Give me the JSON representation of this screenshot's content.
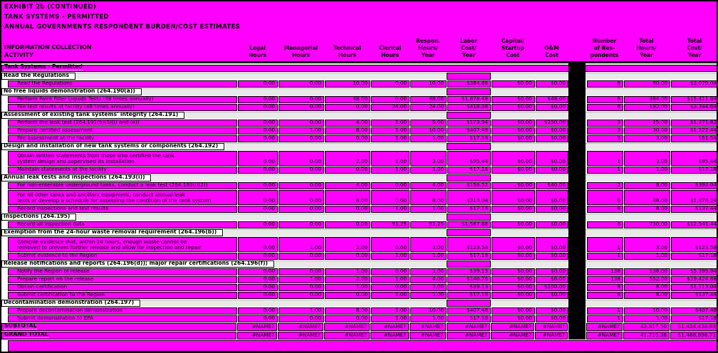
{
  "report": {
    "title_line1": "EXHIBIT 2b (CONTINUED)",
    "title_line2": "TANK SYSTEMS - PERMITTED",
    "title_line3": "ANNUAL GOVERNMENTS RESPONDENT BURDEN/COST ESTIMATES",
    "left_header": "INFORMATION COLLECTION\nACTIVITY"
  },
  "colors": {
    "highlight": "#ff00ff",
    "section_bg": "#e9e9e9",
    "redaction_bar": "#000000"
  },
  "columns": [
    {
      "id": "legal_hours",
      "label": "Legal\nHours"
    },
    {
      "id": "managerial_hours",
      "label": "Managerial\nHours"
    },
    {
      "id": "technical_hours",
      "label": "Technical\nHours"
    },
    {
      "id": "clerical_hours",
      "label": "Clerical\nHours"
    },
    {
      "id": "respondent_hours",
      "label": "Respon.\nHours/\nYear"
    },
    {
      "id": "labor_cost",
      "label": "Labor\nCost/\nYear"
    },
    {
      "id": "capital_cost",
      "label": "Capital/\nStartup\nCost"
    },
    {
      "id": "om_cost",
      "label": "O&M\nCost"
    },
    {
      "id": "respondents",
      "label": "Number\nof Res-\npondents"
    },
    {
      "id": "total_hours",
      "label": "Total\nHours/\nYear"
    },
    {
      "id": "total_cost",
      "label": "Total\nCost/\nYear"
    }
  ],
  "rows": [
    {
      "type": "band",
      "label": "Tank Systems - Permitted"
    },
    {
      "type": "section",
      "label": "Read the Regulations"
    },
    {
      "type": "data",
      "label": "Read the Regulations",
      "values": [
        "0.00",
        "0.00",
        "10.00",
        "0.00",
        "10.00",
        "$384.88",
        "$0.00",
        "$0.00",
        "8",
        "80.00",
        "$3,079.04"
      ]
    },
    {
      "type": "section",
      "label": "No free liquids demonstration (264.190(a))"
    },
    {
      "type": "data",
      "label": "Perform Paint Filter Liquids Tests (48 times annually)",
      "values": [
        "0.00",
        "0.00",
        "48.00",
        "0.00",
        "48.00",
        "$1,878.48",
        "$0.00",
        "$48.00",
        "8",
        "384.00",
        "$15,411.84"
      ]
    },
    {
      "type": "data",
      "label": "File test results at facility  (48 times annually)",
      "values": [
        "0.00",
        "0.00",
        "0.00",
        "24.00",
        "24.00",
        "$418.08",
        "$0.00",
        "$0.00",
        "8",
        "192.00",
        "$3,344.64"
      ]
    },
    {
      "type": "section",
      "label": "Assessment of existing tank systems' integrity (264.191)"
    },
    {
      "type": "data",
      "label": "Perform the leak test (264.191(b)(5)(i) and (ii))",
      "values": [
        "0.00",
        "0.00",
        "4.00",
        "1.00",
        "5.00",
        "$173.94",
        "$0.00",
        "$250.00",
        "3",
        "15.00",
        "$1,271.82"
      ]
    },
    {
      "type": "data",
      "label": "Prepare certified assessment",
      "values": [
        "0.00",
        "1.00",
        "8.00",
        "1.00",
        "10.00",
        "$407.48",
        "$0.00",
        "$0.00",
        "3",
        "30.00",
        "$1,222.44"
      ]
    },
    {
      "type": "data",
      "label": "File assessment at the facility",
      "values": [
        "0.00",
        "0.00",
        "0.00",
        "1.00",
        "1.00",
        "$17.18",
        "$0.00",
        "$0.00",
        "3",
        "3.00",
        "$51.54"
      ]
    },
    {
      "type": "section",
      "label": "Design and installation of new tank systems or components (264.192)"
    },
    {
      "type": "data2",
      "label": "Obtain written statements from those who certified the tank",
      "label2": "system design and supervised its installation",
      "values": [
        "0.00",
        "0.00",
        "2.00",
        "1.00",
        "3.00",
        "$95.44",
        "$0.00",
        "$0.00",
        "1",
        "3.00",
        "$95.44"
      ]
    },
    {
      "type": "data",
      "label": "Maintain statements at the facility",
      "values": [
        "0.00",
        "0.00",
        "0.00",
        "1.00",
        "1.00",
        "$17.18",
        "$0.00",
        "$0.00",
        "1",
        "1.00",
        "$17.18"
      ]
    },
    {
      "type": "section",
      "label": "Annual leak tests and inspections (264.193(i))"
    },
    {
      "type": "data",
      "label": "For non-enterable underground tanks, conduct a leak test (264.193(i)(2))",
      "values": [
        "0.00",
        "0.00",
        "4.00",
        "0.00",
        "4.00",
        "$156.52",
        "$0.00",
        "$40.00",
        "2",
        "8.00",
        "$393.04"
      ]
    },
    {
      "type": "data2",
      "label": "For all other tanks and ancillary equipment, conduct annual leak",
      "label2": "tests or develop a schedule for assessing the condition of the tank system",
      "values": [
        "0.00",
        "0.00",
        "8.00",
        "0.00",
        "8.00",
        "$313.04",
        "$0.00",
        "$0.00",
        "6",
        "48.00",
        "$1,878.24"
      ]
    },
    {
      "type": "data",
      "label": "Record inspections and test results",
      "values": [
        "0.00",
        "0.00",
        "0.00",
        "1.00",
        "1.00",
        "$17.18",
        "$0.00",
        "$0.00",
        "8",
        "8.00",
        "$137.44"
      ]
    },
    {
      "type": "section",
      "label": "Inspections (264.195)"
    },
    {
      "type": "data",
      "label": "Record all inspection data",
      "values": [
        "0.00",
        "0.00",
        "0.00",
        "91.25",
        "91.25",
        "$1,567.68",
        "$0.00",
        "$0.00",
        "8",
        "730.00",
        "$12,541.44"
      ]
    },
    {
      "type": "section",
      "label": "Exemption from the 24-hour waste removal requirement (264.196(b))"
    },
    {
      "type": "data2",
      "label": "Compile evidence that, within 24 hours, enough waste cannot be",
      "label2": "removed to prevent further release and allow  for inspection and repair",
      "values": [
        "0.00",
        "1.00",
        "2.00",
        "0.00",
        "3.00",
        "$123.58",
        "$0.00",
        "$0.00",
        "1",
        "3.00",
        "$123.58"
      ]
    },
    {
      "type": "data",
      "label": "Submit evidence to the Region",
      "values": [
        "0.00",
        "0.00",
        "0.00",
        "1.00",
        "1.00",
        "$17.18",
        "$0.00",
        "$0.00",
        "1",
        "1.00",
        "$17.18"
      ]
    },
    {
      "type": "section",
      "label": "Release notifications and reports (264.196(d)); major repair certifications (264.196(f))"
    },
    {
      "type": "data",
      "label": "Notify the Region of release",
      "values": [
        "0.00",
        "0.00",
        "1.00",
        "0.00",
        "1.00",
        "$39.13",
        "$0.00",
        "$0.00",
        "138",
        "138.00",
        "$5,399.94"
      ]
    },
    {
      "type": "data",
      "label": "Prepare report on the release",
      "values": [
        "0.00",
        "1.00",
        "2.00",
        "1.00",
        "4.00",
        "$140.76",
        "$0.00",
        "$0.00",
        "138",
        "552.00",
        "$19,424.88"
      ]
    },
    {
      "type": "data",
      "label": "Obtain certification",
      "values": [
        "0.00",
        "0.00",
        "1.00",
        "0.00",
        "1.00",
        "$39.13",
        "$0.00",
        "$100.00",
        "8",
        "8.00",
        "$1,113.04"
      ]
    },
    {
      "type": "data",
      "label": "Submit certification to the Region",
      "values": [
        "0.00",
        "0.00",
        "0.00",
        "1.00",
        "1.00",
        "$17.18",
        "$0.00",
        "$0.00",
        "8",
        "8.00",
        "$137.44"
      ]
    },
    {
      "type": "section",
      "label": "Decontamination demonstration (264.197)"
    },
    {
      "type": "data",
      "label": "Prepare decontamination demonstration",
      "values": [
        "0.00",
        "1.00",
        "8.00",
        "1.00",
        "10.00",
        "$407.48",
        "$0.00",
        "$0.00",
        "1",
        "10.00",
        "$407.48"
      ]
    },
    {
      "type": "data",
      "label": "Submit demonstration to EPA",
      "values": [
        "0.00",
        "0.00",
        "0.00",
        "1.00",
        "1.00",
        "$17.18",
        "$0.00",
        "$0.00",
        "1",
        "1.00",
        "$17.18"
      ]
    },
    {
      "type": "total",
      "label": "SUBTOTAL",
      "values": [
        "#NAME?",
        "#NAME?",
        "#NAME?",
        "#NAME?",
        "#NAME?",
        "#NAME?",
        "#NAME?",
        "#NAME?",
        "#NAME?",
        "43,817.50",
        "$1,434,438.83"
      ]
    },
    {
      "type": "total",
      "label": "GRAND TOTAL",
      "values": [
        "#NAME?",
        "#NAME?",
        "#NAME?",
        "#NAME?",
        "#NAME?",
        "#NAME?",
        "#NAME?",
        "#NAME?",
        "#NAME?",
        "41,710.38",
        "$1,488,898.71"
      ]
    },
    {
      "type": "footer",
      "label": ""
    }
  ]
}
